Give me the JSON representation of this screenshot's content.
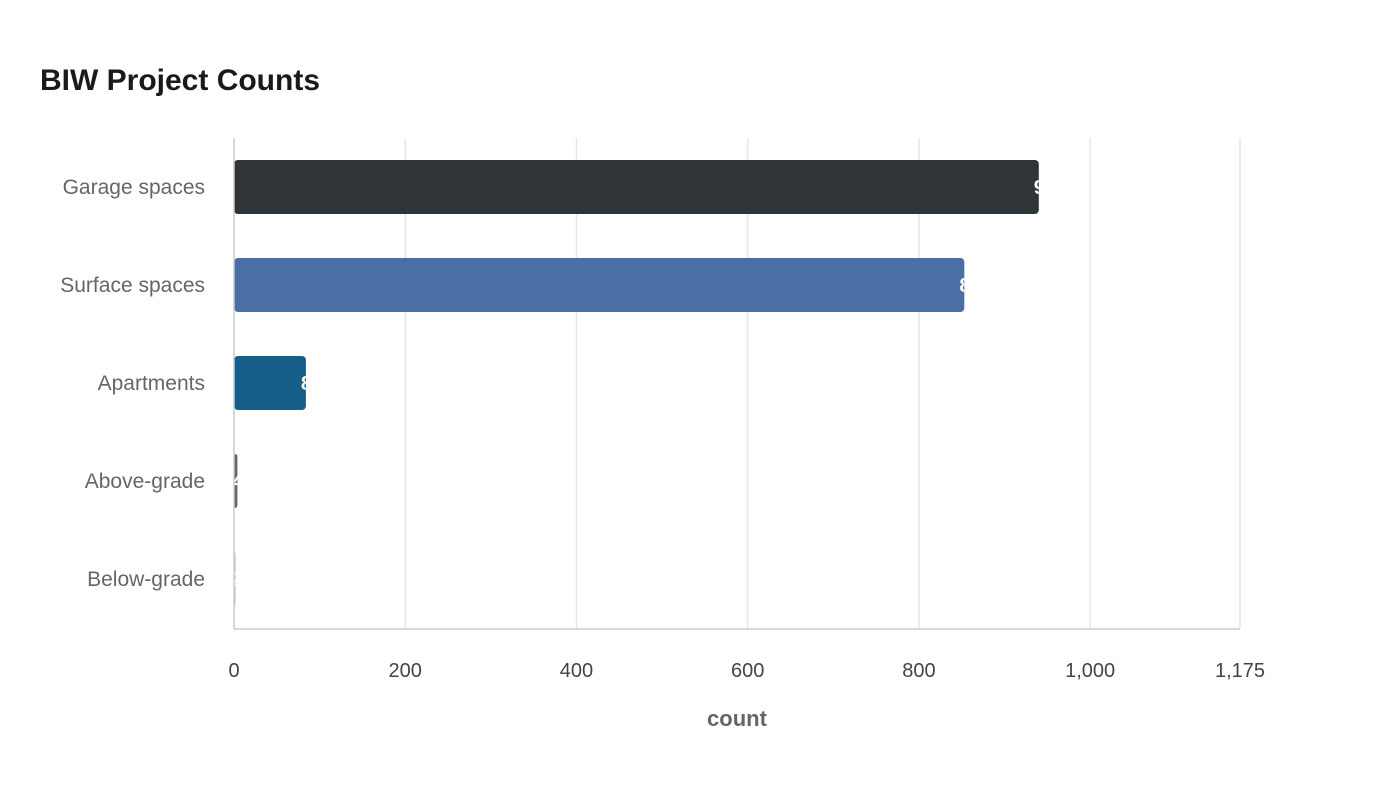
{
  "chart_data": {
    "type": "bar",
    "orientation": "horizontal",
    "title": "BIW Project Counts",
    "xlabel": "count",
    "ylabel": "",
    "categories": [
      "Garage spaces",
      "Surface spaces",
      "Apartments",
      "Above-grade",
      "Below-grade"
    ],
    "values": [
      940,
      853,
      84,
      4,
      2
    ],
    "colors": [
      "#2e3437",
      "#4a6fa5",
      "#165f8a",
      "#666666",
      "#cccccc"
    ],
    "value_label_color": "#ffffff",
    "xlim": [
      0,
      1175
    ],
    "xticks": [
      0,
      200,
      400,
      600,
      800,
      1000,
      1175
    ],
    "xtick_labels": [
      "0",
      "200",
      "400",
      "600",
      "800",
      "1,000",
      "1,175"
    ],
    "grid": true,
    "grid_color": "#e6e6e6",
    "axis_color": "#cccccc"
  }
}
